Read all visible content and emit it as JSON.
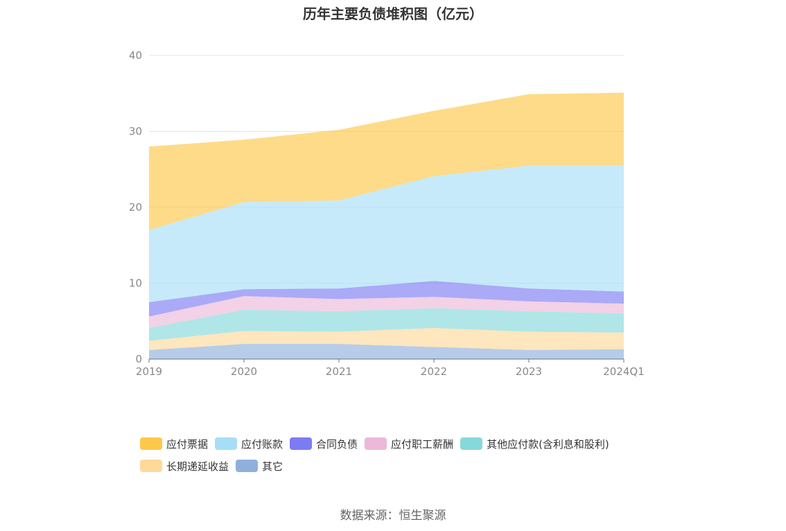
{
  "title": "历年主要负债堆积图（亿元）",
  "source": "数据来源：恒生聚源",
  "chart_data": {
    "type": "area",
    "stacked": true,
    "categories": [
      "2019",
      "2020",
      "2021",
      "2022",
      "2023",
      "2024Q1"
    ],
    "ylim": [
      0,
      40
    ],
    "yticks": [
      0,
      10,
      20,
      30,
      40
    ],
    "grid": true,
    "legend_position": "bottom",
    "series": [
      {
        "name": "其它",
        "color": "#90b0dc",
        "values": [
          1.2,
          2.0,
          2.0,
          1.6,
          1.2,
          1.3
        ]
      },
      {
        "name": "长期递延收益",
        "color": "#fdd99b",
        "values": [
          1.2,
          1.7,
          1.6,
          2.5,
          2.4,
          2.2
        ]
      },
      {
        "name": "其他应付款(含利息和股利)",
        "color": "#86d9da",
        "values": [
          1.7,
          2.8,
          2.7,
          2.6,
          2.7,
          2.5
        ]
      },
      {
        "name": "应付职工薪酬",
        "color": "#ecb9d8",
        "values": [
          1.5,
          1.8,
          1.6,
          1.5,
          1.3,
          1.3
        ]
      },
      {
        "name": "合同负债",
        "color": "#7c7cf2",
        "values": [
          1.9,
          0.9,
          1.4,
          2.1,
          1.7,
          1.6
        ]
      },
      {
        "name": "应付账款",
        "color": "#a7def7",
        "values": [
          9.5,
          11.5,
          11.6,
          13.8,
          16.2,
          16.6
        ]
      },
      {
        "name": "应付票据",
        "color": "#fec84a",
        "values": [
          11.0,
          8.2,
          9.3,
          8.6,
          9.4,
          9.6
        ]
      }
    ]
  }
}
